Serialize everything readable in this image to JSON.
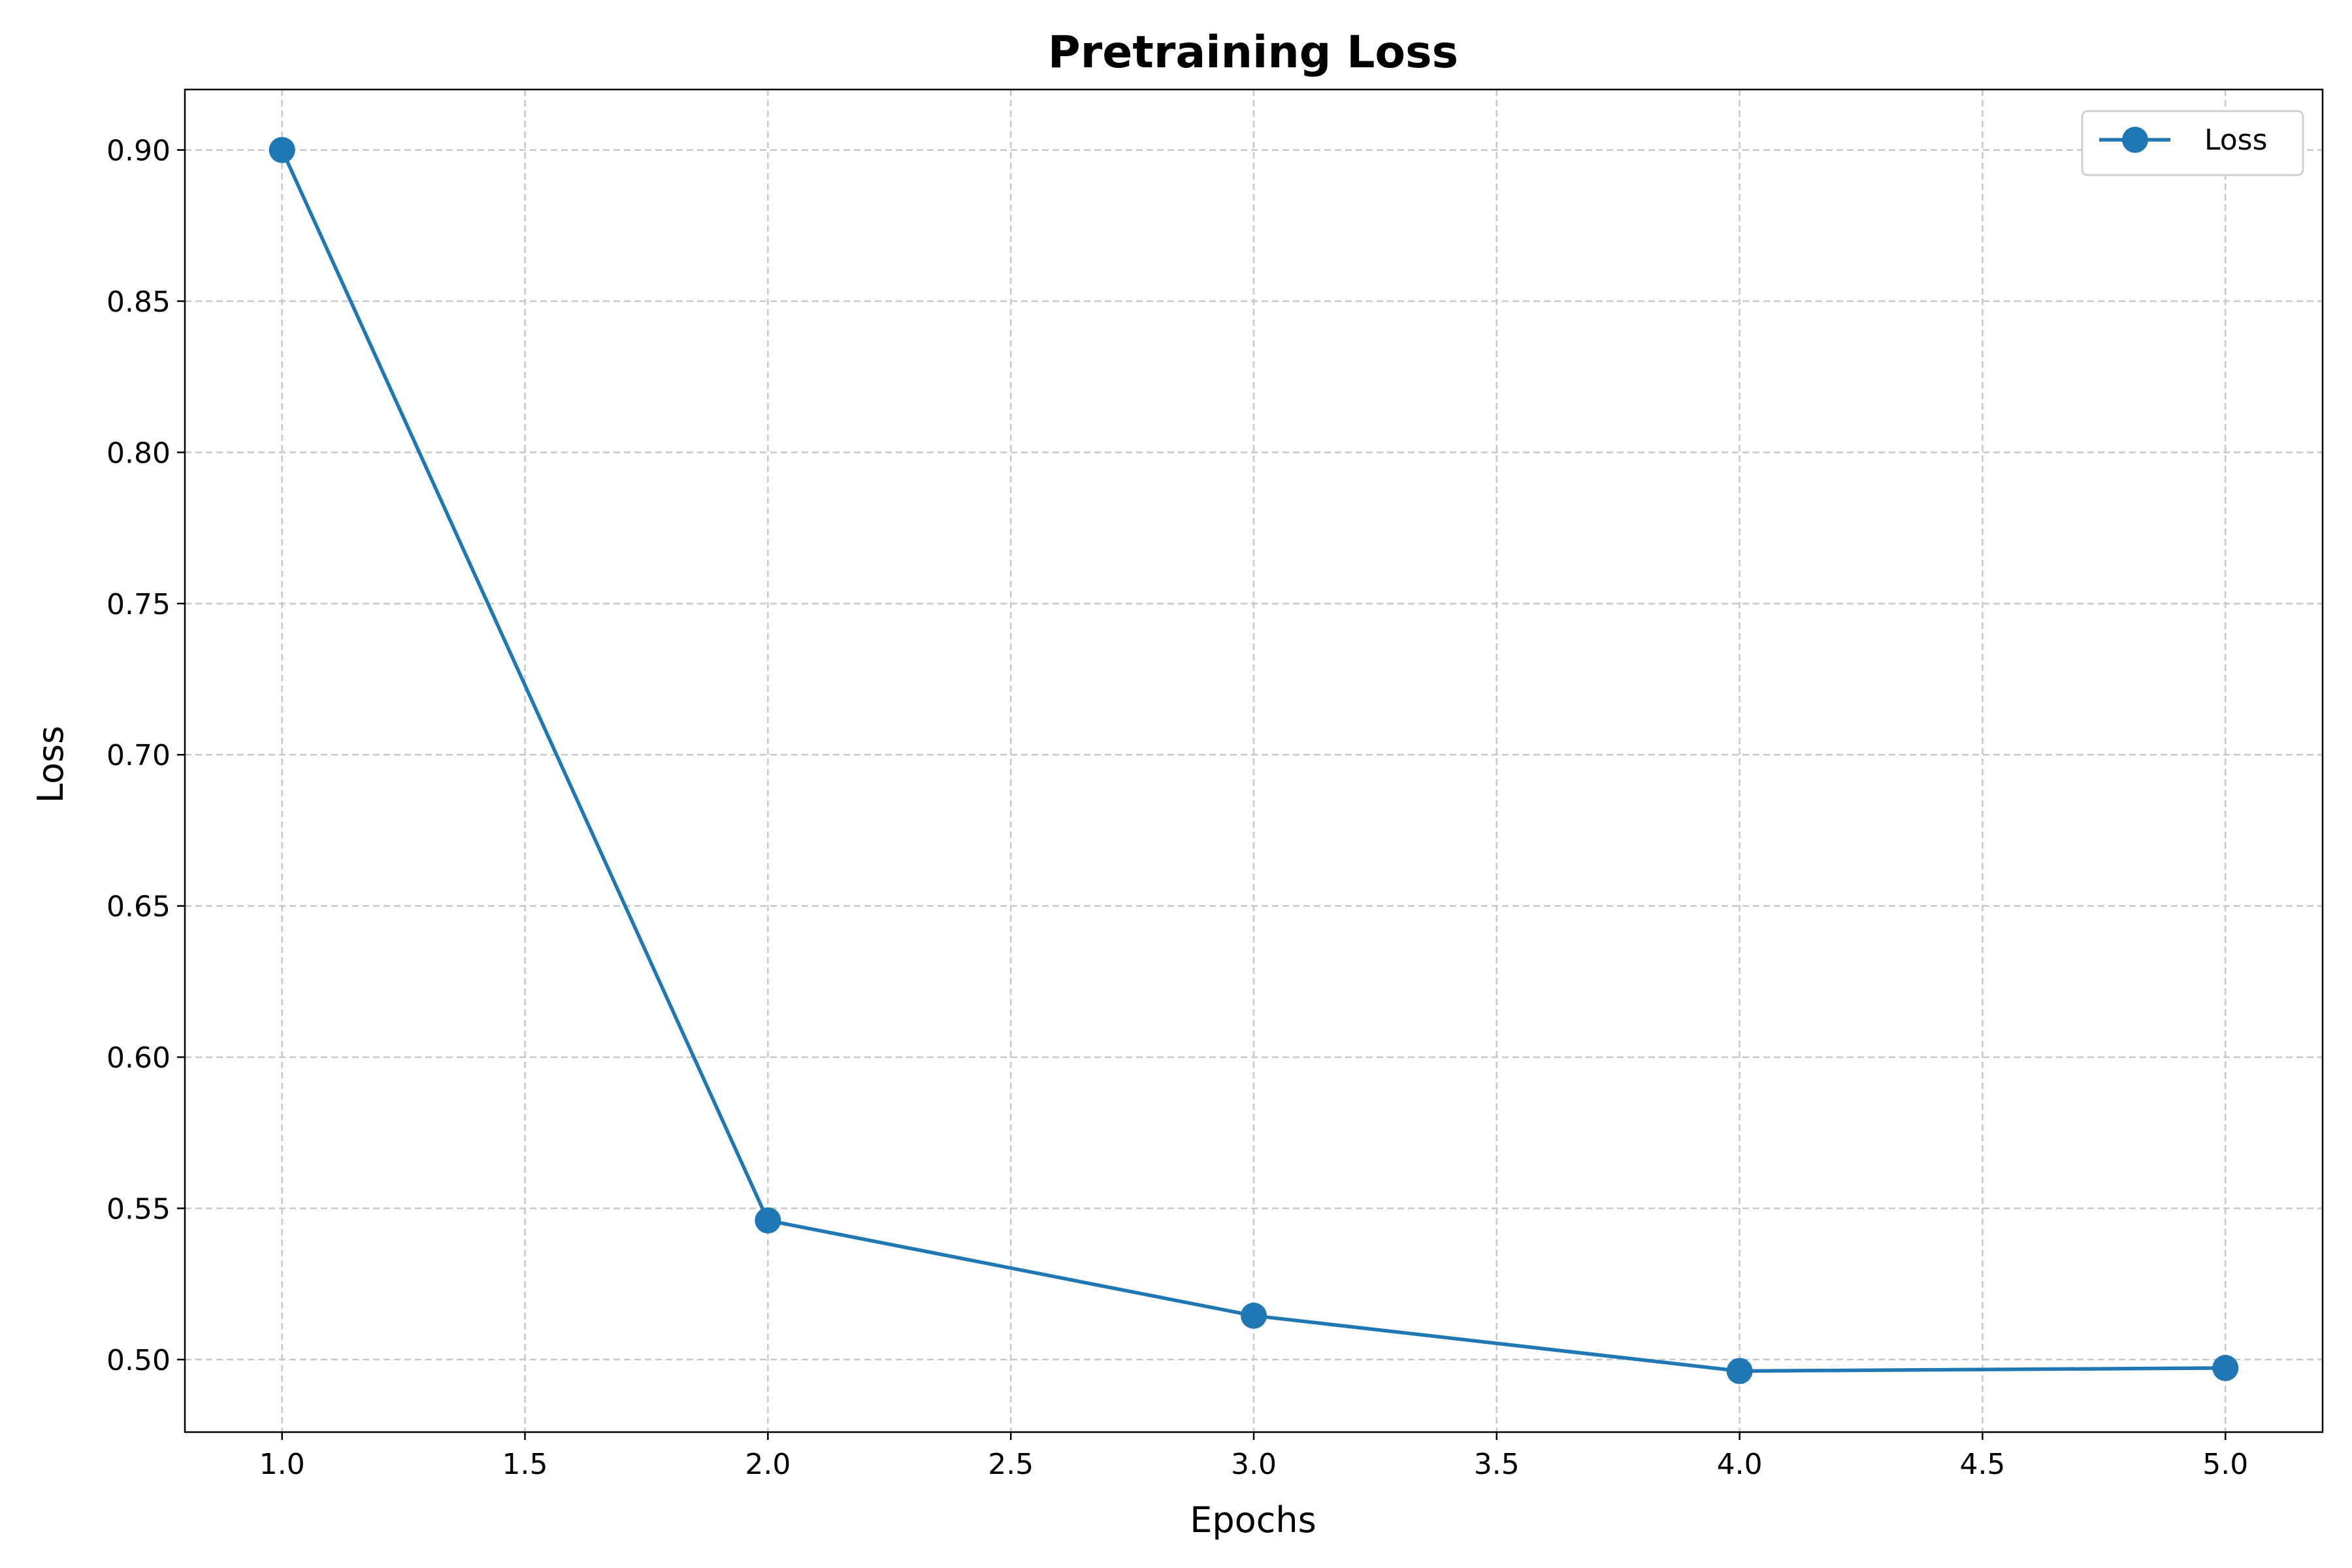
{
  "chart_data": {
    "type": "line",
    "title": "Pretraining Loss",
    "xlabel": "Epochs",
    "ylabel": "Loss",
    "xlim": [
      0.8,
      5.2
    ],
    "ylim": [
      0.476,
      0.92
    ],
    "xticks": [
      1.0,
      1.5,
      2.0,
      2.5,
      3.0,
      3.5,
      4.0,
      4.5,
      5.0
    ],
    "xtick_labels": [
      "1.0",
      "1.5",
      "2.0",
      "2.5",
      "3.0",
      "3.5",
      "4.0",
      "4.5",
      "5.0"
    ],
    "yticks": [
      0.5,
      0.55,
      0.6,
      0.65,
      0.7,
      0.75,
      0.8,
      0.85,
      0.9
    ],
    "ytick_labels": [
      "0.50",
      "0.55",
      "0.60",
      "0.65",
      "0.70",
      "0.75",
      "0.80",
      "0.85",
      "0.90"
    ],
    "grid": true,
    "legend_position": "top-right",
    "series": [
      {
        "name": "Loss",
        "color": "#1f77b4",
        "marker": "circle",
        "x": [
          1,
          2,
          3,
          4,
          5
        ],
        "y": [
          0.9,
          0.546,
          0.5145,
          0.4962,
          0.4972
        ]
      }
    ]
  }
}
